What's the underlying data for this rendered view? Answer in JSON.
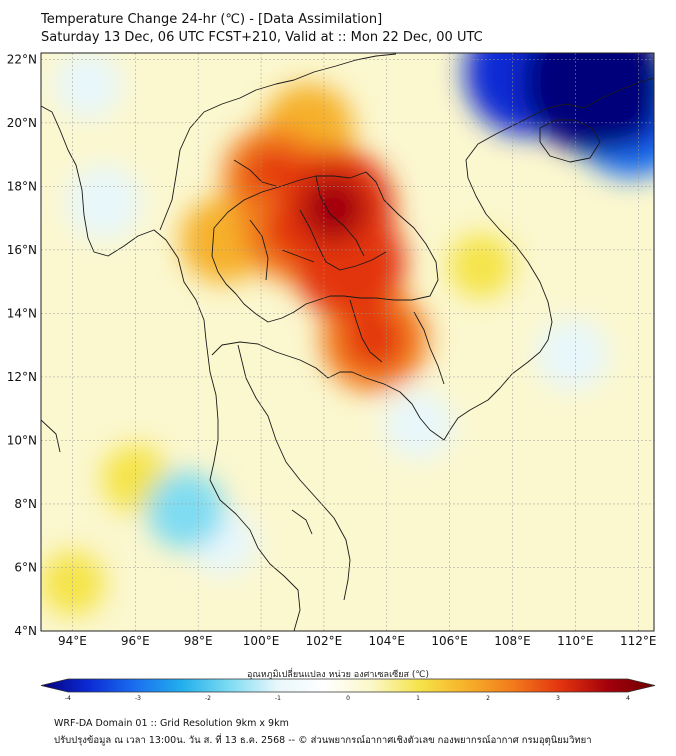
{
  "header": {
    "line1": "Temperature Change 24-hr (℃) - [Data Assimilation]",
    "line2": "Saturday 13 Dec, 06 UTC FCST+210, Valid at :: Mon 22 Dec, 00 UTC"
  },
  "map": {
    "lat_ticks": [
      "22°N",
      "20°N",
      "18°N",
      "16°N",
      "14°N",
      "12°N",
      "10°N",
      "8°N",
      "6°N",
      "4°N"
    ],
    "lon_ticks": [
      "94°E",
      "96°E",
      "98°E",
      "100°E",
      "102°E",
      "104°E",
      "106°E",
      "108°E",
      "110°E",
      "112°E"
    ],
    "lon_range": [
      93,
      112.5
    ],
    "lat_range": [
      4,
      22.2
    ],
    "hotspots": [
      {
        "lon": 102.3,
        "lat": 17.3,
        "value": 3.0
      },
      {
        "lon": 102.8,
        "lat": 15.6,
        "value": 2.6
      },
      {
        "lon": 100.4,
        "lat": 18.3,
        "value": 2.2
      },
      {
        "lon": 101.0,
        "lat": 16.6,
        "value": 2.2
      },
      {
        "lon": 103.6,
        "lat": 13.2,
        "value": 2.4
      },
      {
        "lon": 101.5,
        "lat": 19.8,
        "value": 1.8
      },
      {
        "lon": 98.8,
        "lat": 16.3,
        "value": 1.6
      },
      {
        "lon": 110.6,
        "lat": 21.3,
        "value": -3.8
      },
      {
        "lon": 108.5,
        "lat": 21.6,
        "value": -3.2
      },
      {
        "lon": 111.8,
        "lat": 20.2,
        "value": -3.0
      },
      {
        "lon": 95.0,
        "lat": 17.5,
        "value": -1.2
      },
      {
        "lon": 94.5,
        "lat": 21.2,
        "value": -0.9
      },
      {
        "lon": 97.6,
        "lat": 7.8,
        "value": -1.3
      },
      {
        "lon": 98.8,
        "lat": 6.8,
        "value": -0.9
      },
      {
        "lon": 109.9,
        "lat": 12.7,
        "value": -1.1
      },
      {
        "lon": 105.0,
        "lat": 10.5,
        "value": -1.0
      },
      {
        "lon": 96.0,
        "lat": 8.8,
        "value": 0.9
      },
      {
        "lon": 94.0,
        "lat": 5.5,
        "value": 0.8
      },
      {
        "lon": 107.0,
        "lat": 15.5,
        "value": 0.8
      }
    ]
  },
  "colorbar": {
    "label": "อุณหภูมิเปลี่ยนแปลง หน่วย องศาเซลเซียส (℃)",
    "ticks": [
      "-4",
      "-3",
      "-2",
      "-1",
      "0",
      "1",
      "2",
      "3",
      "4"
    ],
    "range": [
      -4,
      4
    ],
    "colors": [
      "#06007a",
      "#0b2ad4",
      "#1a6ff0",
      "#22b0ec",
      "#7fdcf2",
      "#e8f7fb",
      "#ffffff",
      "#fbf7c8",
      "#f5e44a",
      "#f6b12a",
      "#f27a1b",
      "#e3340f",
      "#a4000b",
      "#6b0000"
    ]
  },
  "footer": {
    "line1": "WRF-DA Domain 01 :: Grid Resolution 9km x 9km",
    "line2": "ปรับปรุงข้อมูล ณ เวลา 13:00น. วัน ส. ที่ 13 ธ.ค. 2568 -- © ส่วนพยากรณ์อากาศเชิงตัวเลข กองพยากรณ์อากาศ กรมอุตุนิยมวิทยา"
  }
}
